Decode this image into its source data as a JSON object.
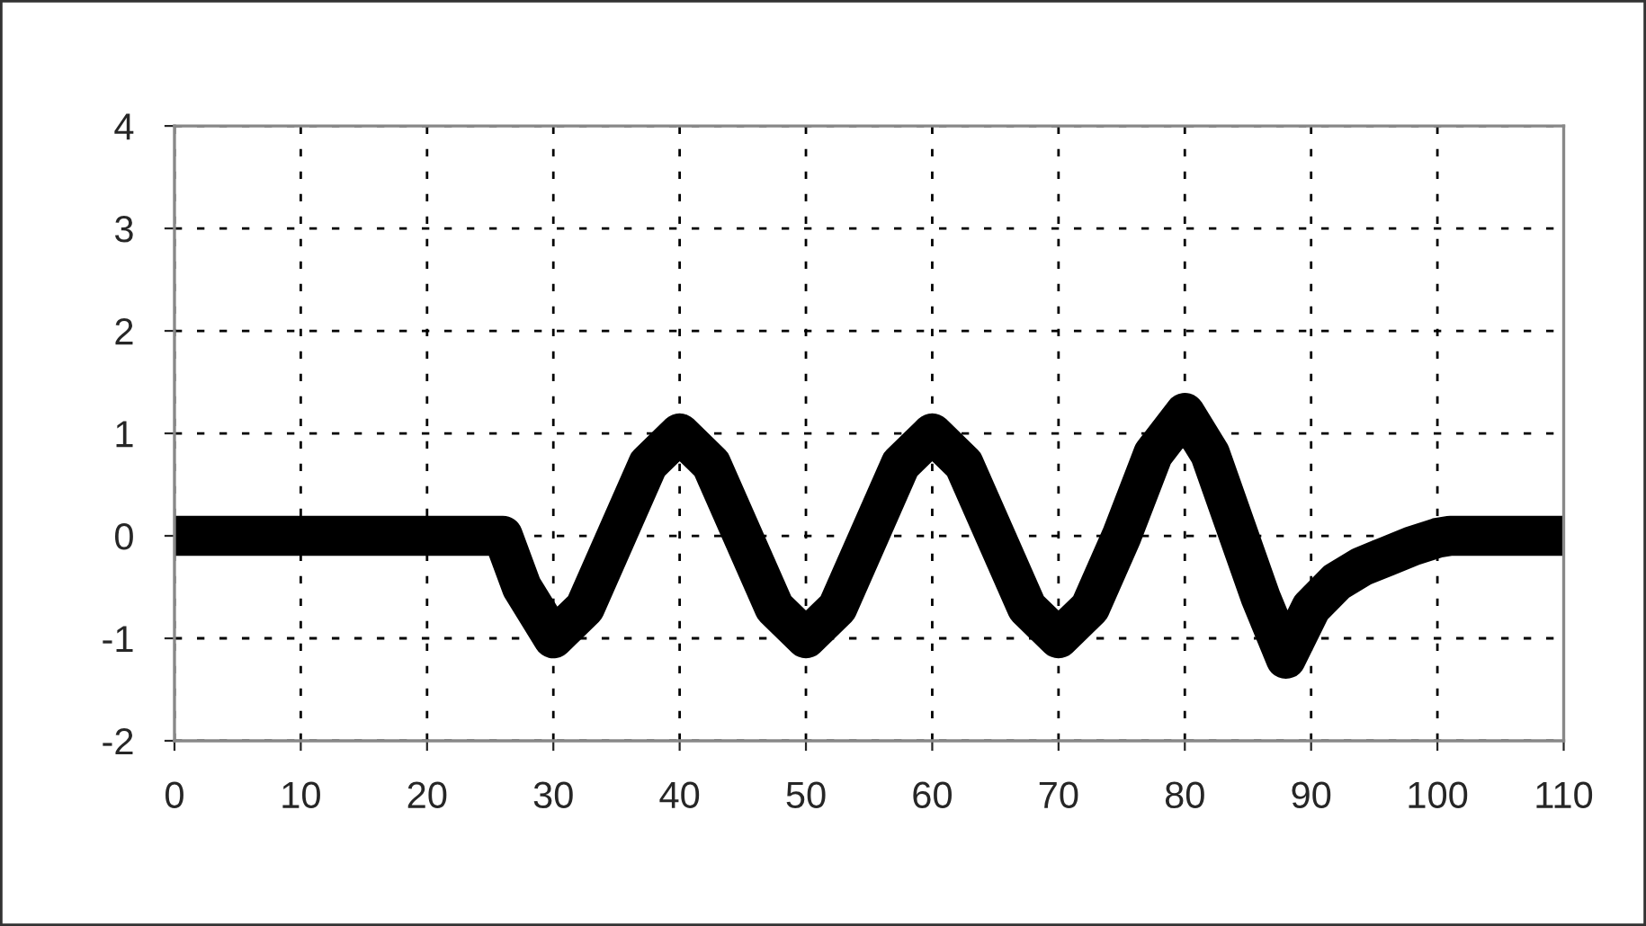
{
  "chart_data": {
    "type": "line",
    "x": [
      0,
      5,
      10,
      15,
      20,
      25,
      26,
      27.5,
      30,
      32.5,
      35,
      37.5,
      40,
      42.5,
      45,
      47.5,
      50,
      52.5,
      55,
      57.5,
      60,
      62.5,
      65,
      67.5,
      70,
      72.5,
      75,
      77.5,
      80,
      82,
      84,
      86,
      88,
      90,
      92,
      94,
      96,
      98,
      100,
      101,
      105,
      110
    ],
    "series": [
      {
        "color": "#000000",
        "values": [
          0,
          0,
          0,
          0,
          0,
          0,
          0,
          -0.5,
          -1,
          -0.7,
          0,
          0.7,
          1,
          0.7,
          0,
          -0.7,
          -1,
          -0.7,
          0,
          0.7,
          1,
          0.7,
          0,
          -0.7,
          -1,
          -0.7,
          0,
          0.8,
          1.2,
          0.8,
          0.1,
          -0.6,
          -1.2,
          -0.7,
          -0.45,
          -0.3,
          -0.2,
          -0.1,
          -0.02,
          0,
          0,
          0
        ]
      }
    ],
    "xlim": [
      0,
      110
    ],
    "xticks": [
      0,
      10,
      20,
      30,
      40,
      50,
      60,
      70,
      80,
      90,
      100,
      110
    ],
    "ylim": [
      -2,
      4
    ],
    "yticks": [
      -2,
      -1,
      0,
      1,
      2,
      3,
      4
    ],
    "grid": true,
    "line_style": "solid"
  }
}
